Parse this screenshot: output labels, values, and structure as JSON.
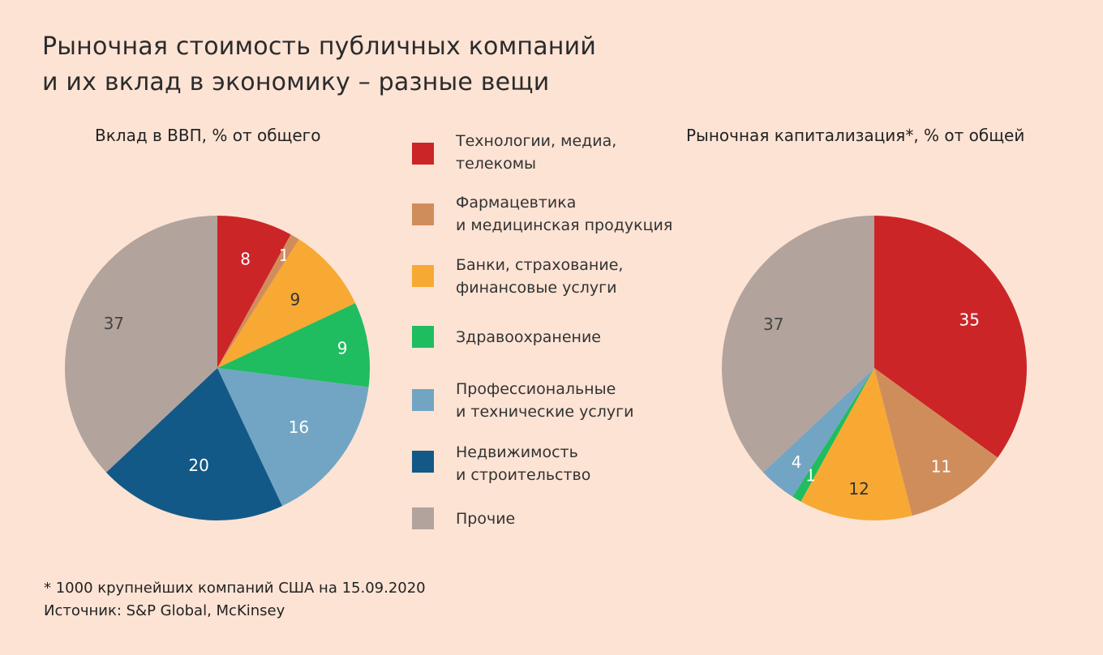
{
  "title": {
    "line1": "Рыночная стоимость публичных компаний",
    "line2": "и их вклад в экономику – разные вещи"
  },
  "chart_data": [
    {
      "type": "pie",
      "title": "Вклад в ВВП, % от общего",
      "categories": [
        "Технологии, медиа, телекомы",
        "Фармацевтика и медицинская продукция",
        "Банки, страхование, финансовые услуги",
        "Здравоохранение",
        "Профессиональные и технические услуги",
        "Недвижимость и строительство",
        "Прочие"
      ],
      "values": [
        8,
        1,
        9,
        9,
        16,
        20,
        37
      ],
      "labels": [
        "8",
        "1",
        "9",
        "9",
        "16",
        "20",
        "37"
      ]
    },
    {
      "type": "pie",
      "title": "Рыночная капитализация*, % от общей",
      "categories": [
        "Технологии, медиа, телекомы",
        "Фармацевтика и медицинская продукция",
        "Банки, страхование, финансовые услуги",
        "Здравоохранение",
        "Профессиональные и технические услуги",
        "Недвижимость и строительство",
        "Прочие"
      ],
      "values": [
        35,
        11,
        12,
        1,
        4,
        0,
        37
      ],
      "labels": [
        "35",
        "11",
        "12",
        "1",
        "4",
        "",
        "37"
      ]
    }
  ],
  "legend": [
    {
      "line1": "Технологии, медиа,",
      "line2": "телекомы",
      "color": "#cc2527"
    },
    {
      "line1": "Фармацевтика",
      "line2": "и медицинская продукция",
      "color": "#d08d5c"
    },
    {
      "line1": "Банки, страхование,",
      "line2": "финансовые услуги",
      "color": "#f7a933"
    },
    {
      "line1": "Здравоохранение",
      "line2": "",
      "color": "#1fbd5f"
    },
    {
      "line1": "Профессиональные",
      "line2": "и технические услуги",
      "color": "#72a5c3"
    },
    {
      "line1": "Недвижимость",
      "line2": "и строительство",
      "color": "#135987"
    },
    {
      "line1": "Прочие",
      "line2": "",
      "color": "#b2a39c"
    }
  ],
  "label_colors": [
    "#ffffff",
    "#ffffff",
    "#333333",
    "#ffffff",
    "#ffffff",
    "#ffffff",
    "#444444"
  ],
  "footnote": {
    "line1": "* 1000 крупнейших компаний США на 15.09.2020",
    "line2": "Источник: S&P Global, McKinsey"
  }
}
